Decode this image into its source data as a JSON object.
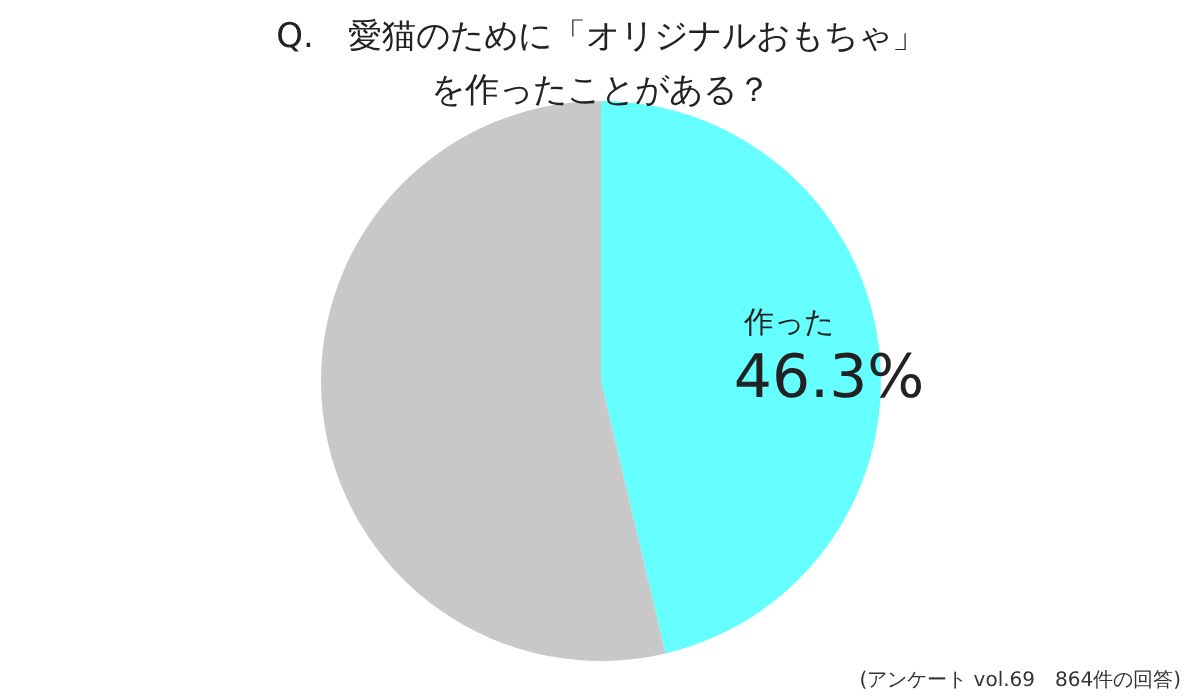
{
  "chart_data": {
    "type": "pie",
    "title": "Q.　愛猫のために「オリジナルおもちゃ」を作ったことがある？",
    "categories": [
      "作った",
      null
    ],
    "values": [
      46.3,
      53.7
    ],
    "colors": [
      "#66ffff",
      "#c8c8c8"
    ],
    "value_labels": [
      "46.3%",
      null
    ],
    "annotations": [
      "(アンケート vol.69　864件の回答)"
    ]
  }
}
